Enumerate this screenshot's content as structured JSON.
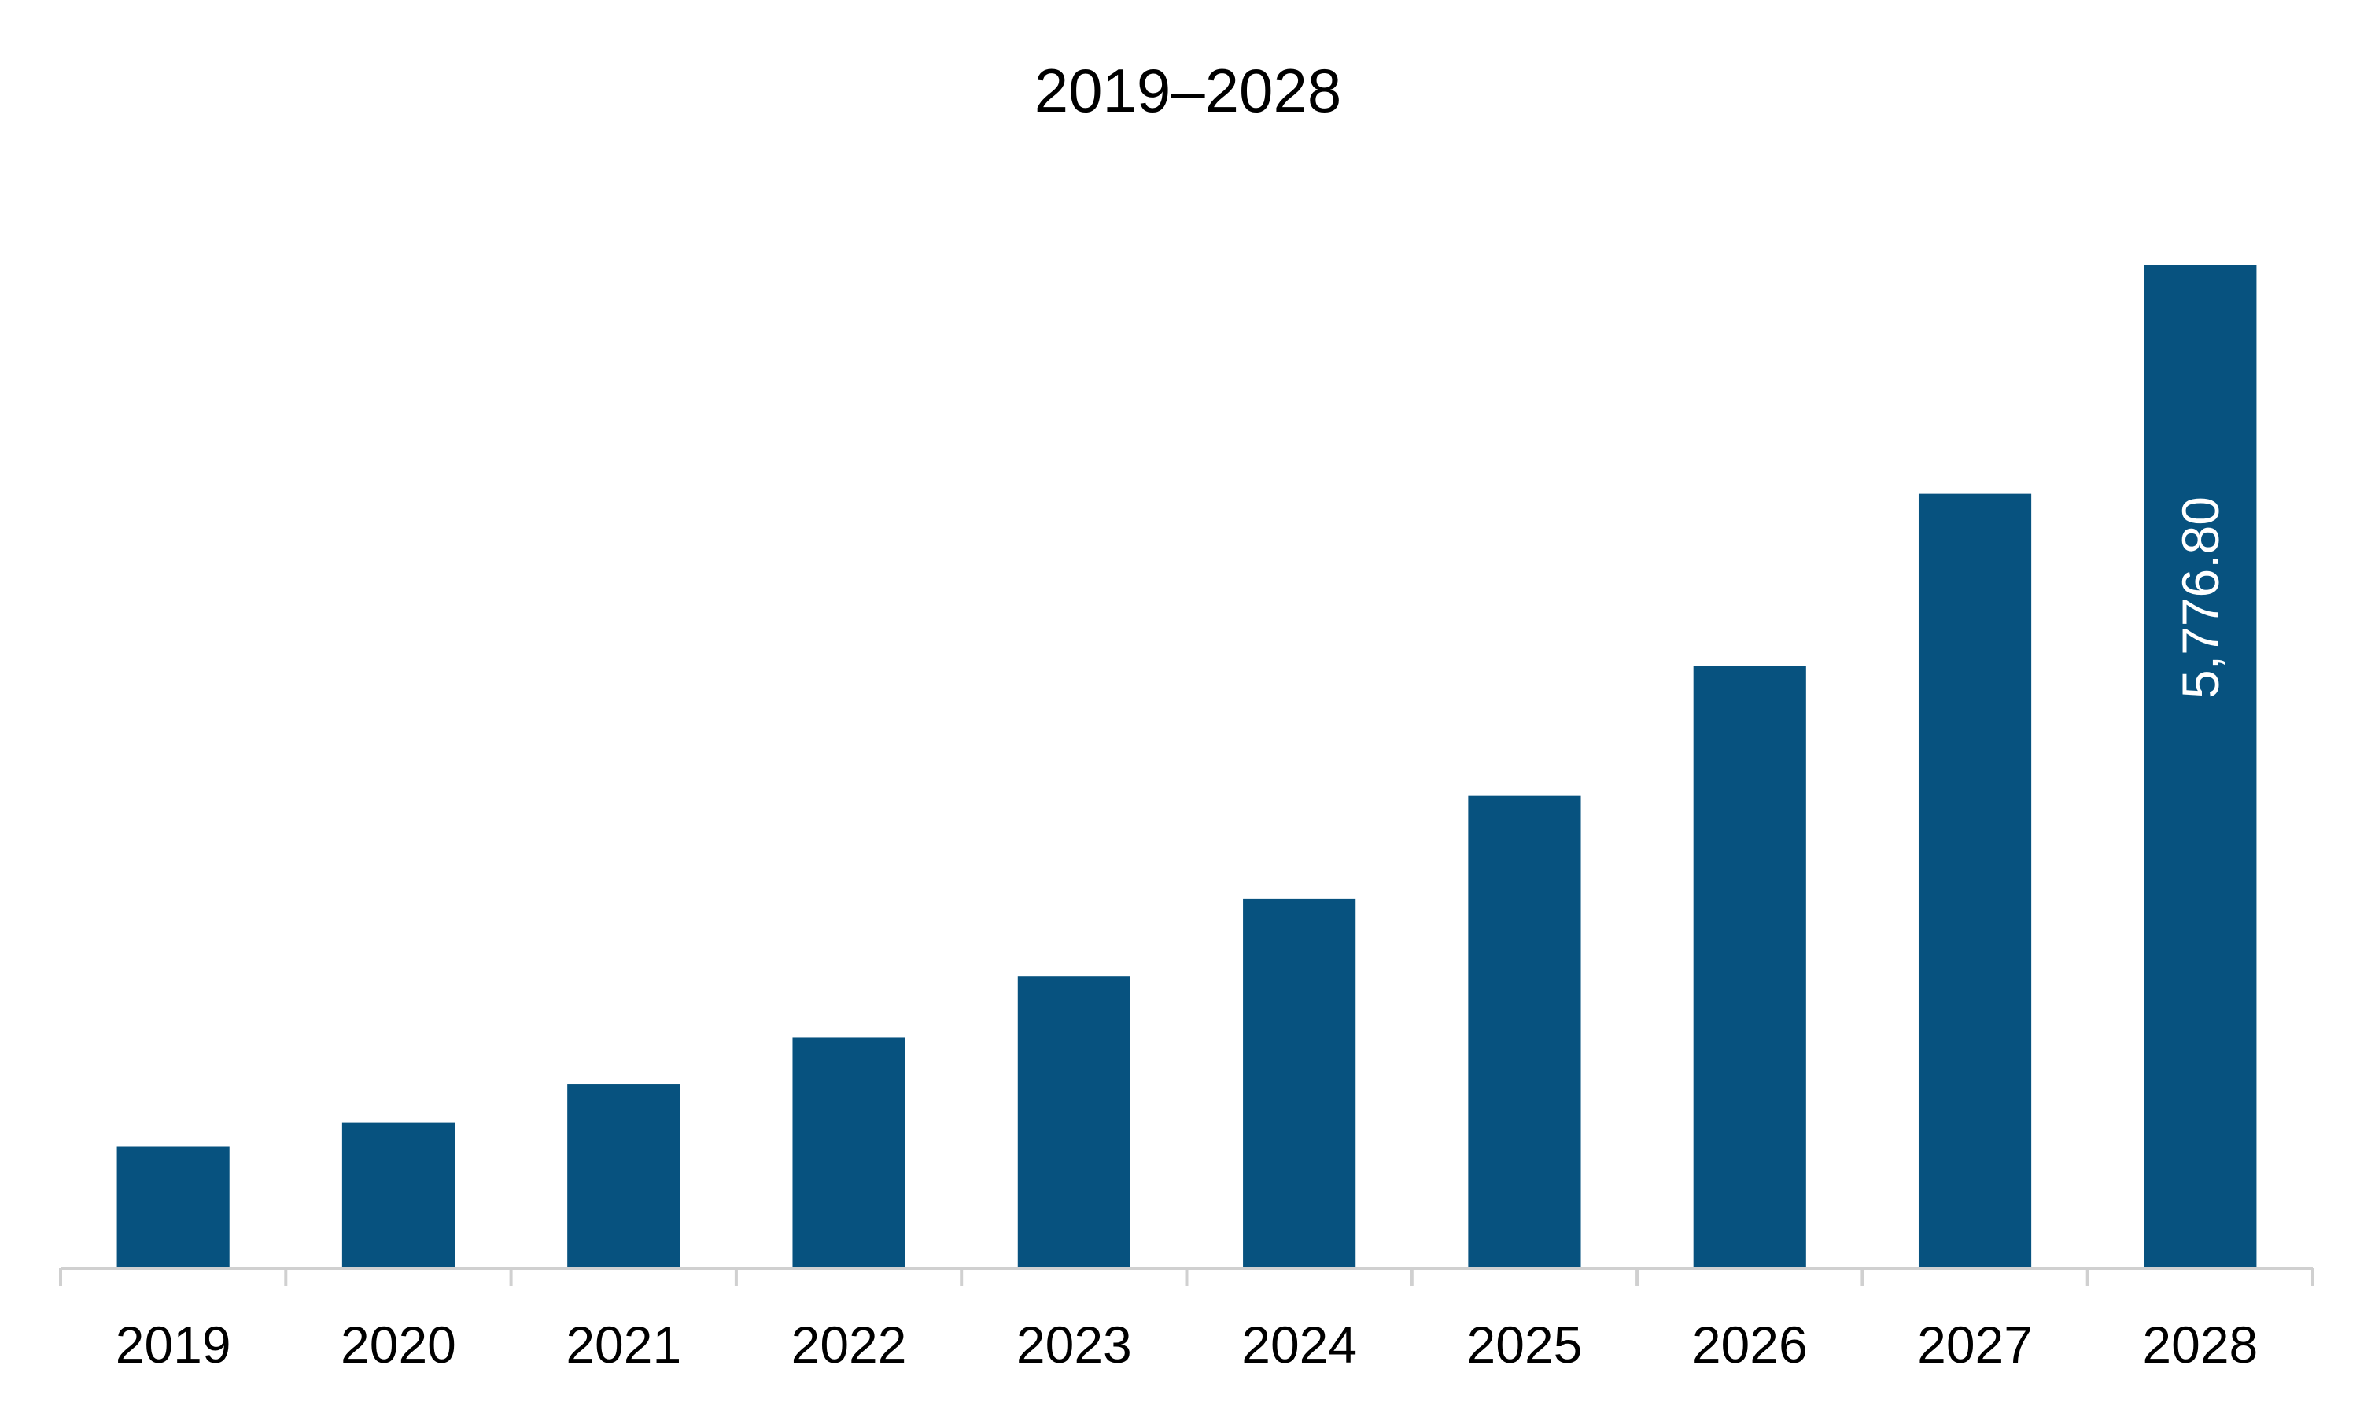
{
  "chart_data": {
    "type": "bar",
    "title": "2019–2028",
    "xlabel": "",
    "ylabel": "",
    "categories": [
      "2019",
      "2020",
      "2021",
      "2022",
      "2023",
      "2024",
      "2025",
      "2026",
      "2027",
      "2028"
    ],
    "values": [
      700,
      840,
      1060,
      1330,
      1680,
      2130,
      2720,
      3470,
      4460,
      5776.8
    ],
    "data_labels": [
      "",
      "",
      "",
      "",
      "",
      "",
      "",
      "",
      "",
      "5,776.80"
    ],
    "ylim": [
      0,
      5776.8
    ],
    "grid": false,
    "legend": "none",
    "colors": {
      "bar": "#07527F",
      "axis": "#D0D0D0",
      "text": "#000000",
      "data_label": "#FFFFFF"
    }
  }
}
